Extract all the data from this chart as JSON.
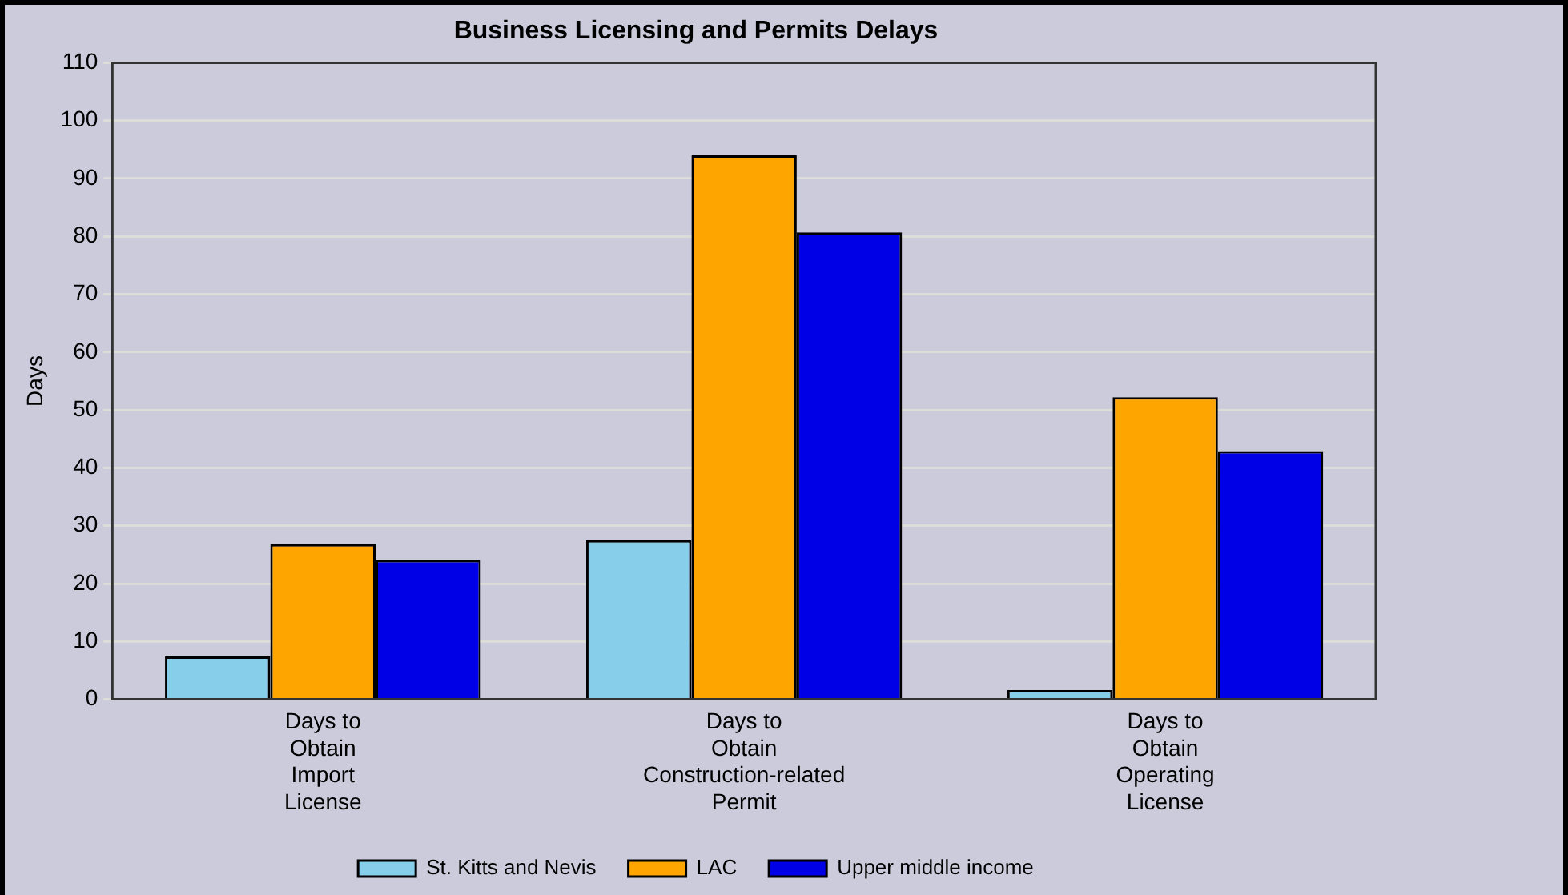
{
  "chart_data": {
    "type": "bar",
    "title": "Business Licensing and Permits Delays",
    "ylabel": "Days",
    "categories": [
      "Days to Obtain Import License",
      "Days to Obtain Construction-related Permit",
      "Days to Obtain Operating License"
    ],
    "series": [
      {
        "name": "St. Kitts and Nevis",
        "color": "#87ceeb",
        "values": [
          7.4,
          27.5,
          1.6
        ]
      },
      {
        "name": "LAC",
        "color": "#ffa500",
        "values": [
          26.8,
          94,
          52.2
        ]
      },
      {
        "name": "Upper middle income",
        "color": "#0000e6",
        "values": [
          24.1,
          80.7,
          42.9
        ]
      }
    ],
    "ylim": [
      0,
      110
    ],
    "yticks": [
      0,
      10,
      20,
      30,
      40,
      50,
      60,
      70,
      80,
      90,
      100,
      110
    ],
    "grid": "y",
    "legend": "bottom"
  }
}
